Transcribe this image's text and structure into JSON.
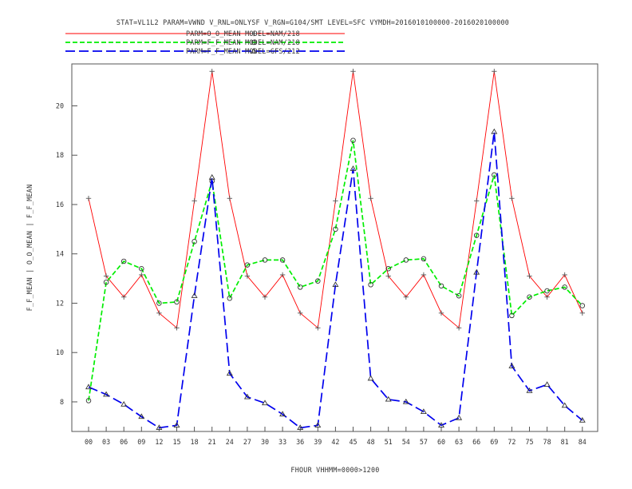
{
  "chart_data": {
    "type": "line",
    "title": "STAT=VL1L2 PARAM=VWND V_RNL=ONLYSF V_RGN=G104/SMT LEVEL=SFC VYMDH=2016010100000-2016020100000",
    "xlabel": "FHOUR VHHMM=0000>1200",
    "ylabel": "F_F_MEAN | O_O_MEAN | F_F_MEAN",
    "categories": [
      "00",
      "03",
      "06",
      "09",
      "12",
      "15",
      "18",
      "21",
      "24",
      "27",
      "30",
      "33",
      "36",
      "39",
      "42",
      "45",
      "48",
      "51",
      "54",
      "57",
      "60",
      "63",
      "66",
      "69",
      "72",
      "75",
      "78",
      "81",
      "84"
    ],
    "yticks": [
      8,
      10,
      12,
      14,
      16,
      18,
      20
    ],
    "ylim": [
      6.8,
      21.7
    ],
    "grid": false,
    "legend_position": "top-left",
    "series": [
      {
        "name": "PARM=O_O_MEAN MODEL=NAM/218",
        "color": "#ff0000",
        "marker": "plus",
        "dash": "solid",
        "values": [
          16.25,
          13.1,
          12.25,
          13.15,
          11.6,
          11.0,
          16.15,
          21.4,
          16.25,
          13.1,
          12.25,
          13.15,
          11.6,
          11.0,
          16.15,
          21.4,
          16.25,
          13.1,
          12.25,
          13.15,
          11.6,
          11.0,
          16.15,
          21.4,
          16.25,
          13.1,
          12.25,
          13.15,
          11.6
        ]
      },
      {
        "name": "PARM=F_F_MEAN MODEL=NAM/218",
        "color": "#00ee00",
        "marker": "circle",
        "dash": "short",
        "values": [
          8.05,
          12.85,
          13.7,
          13.4,
          12.0,
          12.05,
          14.5,
          16.95,
          12.2,
          13.55,
          13.75,
          13.75,
          12.65,
          12.9,
          15.0,
          18.6,
          12.75,
          13.4,
          13.75,
          13.8,
          12.7,
          12.3,
          14.75,
          17.2,
          11.5,
          12.25,
          12.5,
          12.65,
          11.9
        ]
      },
      {
        "name": "PARM=F_F_MEAN MODEL=GFS/212",
        "color": "#0000ee",
        "marker": "triangle",
        "dash": "long",
        "values": [
          8.6,
          8.3,
          7.9,
          7.4,
          6.95,
          7.05,
          12.3,
          17.1,
          9.15,
          8.2,
          7.95,
          7.5,
          6.95,
          7.05,
          12.75,
          17.45,
          8.95,
          8.1,
          8.0,
          7.6,
          7.05,
          7.35,
          13.25,
          18.95,
          9.45,
          8.45,
          8.7,
          7.85,
          7.25
        ]
      }
    ]
  }
}
